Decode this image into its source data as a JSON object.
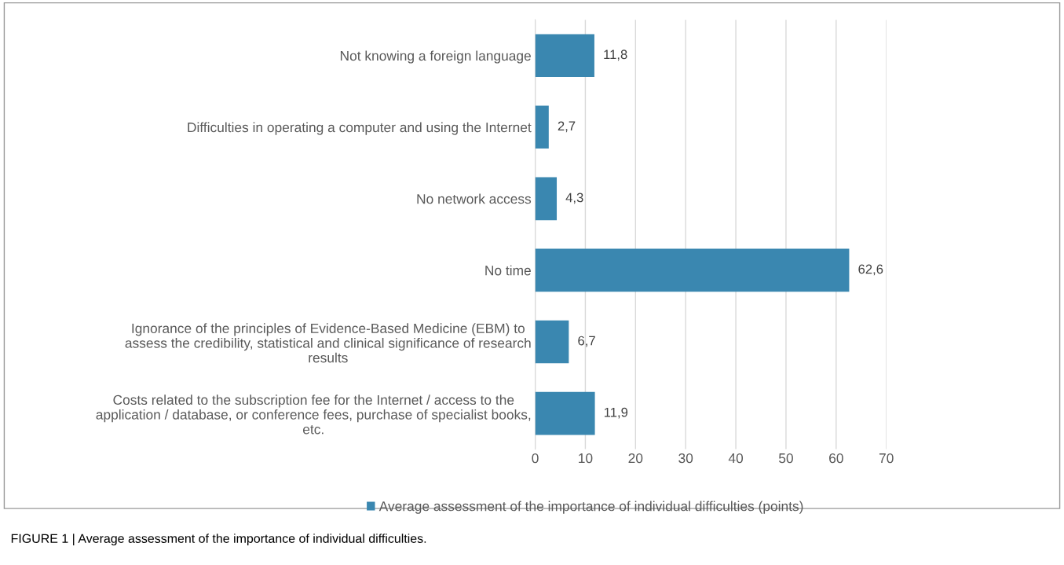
{
  "chart_data": {
    "type": "bar",
    "orientation": "horizontal",
    "categories": [
      "Not knowing a foreign language",
      "Difficulties in operating a computer and using the Internet",
      "No network access",
      "No time",
      "Ignorance of the principles of Evidence-Based Medicine (EBM) to assess the credibility, statistical and clinical significance of research results",
      "Costs related to the subscription fee for the Internet / access to the application / database, or conference fees, purchase of specialist books, etc."
    ],
    "series": [
      {
        "name": "Average assessment of the importance of individual difficulties (points)",
        "color": "#3a87b0",
        "values": [
          11.8,
          2.7,
          4.3,
          62.6,
          6.7,
          11.9
        ],
        "value_labels": [
          "11,8",
          "2,7",
          "4,3",
          "62,6",
          "6,7",
          "11,9"
        ]
      }
    ],
    "xlim": [
      0,
      70
    ],
    "xticks": [
      0,
      10,
      20,
      30,
      40,
      50,
      60,
      70
    ],
    "grid": "x",
    "legend": "bottom",
    "annotations": [
      "FIGURE 1 | Average assessment of the importance of individual difficulties."
    ]
  }
}
